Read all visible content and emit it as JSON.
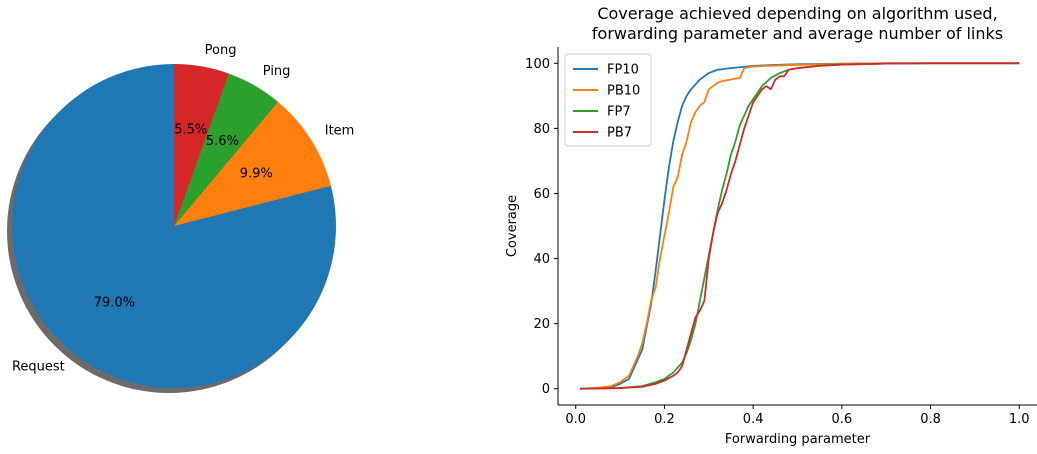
{
  "chart_data": [
    {
      "type": "pie",
      "title": "",
      "labels": [
        "Request",
        "Item",
        "Ping",
        "Pong"
      ],
      "values": [
        79.0,
        9.9,
        5.6,
        5.5
      ],
      "value_labels": [
        "79.0%",
        "9.9%",
        "5.6%",
        "5.5%"
      ],
      "colors": [
        "#1f77b4",
        "#ff7f0e",
        "#2ca02c",
        "#d62728"
      ],
      "start_angle_deg": 90,
      "direction": "counterclockwise",
      "shadow": true
    },
    {
      "type": "line",
      "title": "Coverage achieved depending on algorithm used,\nforwarding parameter and average number of links",
      "title_lines": [
        "Coverage achieved depending on algorithm used,",
        "forwarding parameter and average number of links"
      ],
      "xlabel": "Forwarding parameter",
      "ylabel": "Coverage",
      "xlim": [
        -0.04,
        1.04
      ],
      "ylim": [
        -5,
        105
      ],
      "xticks": [
        0.0,
        0.2,
        0.4,
        0.6,
        0.8,
        1.0
      ],
      "xtick_labels": [
        "0.0",
        "0.2",
        "0.4",
        "0.6",
        "0.8",
        "1.0"
      ],
      "yticks": [
        0,
        20,
        40,
        60,
        80,
        100
      ],
      "ytick_labels": [
        "0",
        "20",
        "40",
        "60",
        "80",
        "100"
      ],
      "grid": false,
      "legend_position": "upper-left",
      "series": [
        {
          "name": "FP10",
          "color": "#1f77b4",
          "x": [
            0.01,
            0.05,
            0.08,
            0.1,
            0.12,
            0.13,
            0.14,
            0.15,
            0.16,
            0.17,
            0.18,
            0.19,
            0.2,
            0.21,
            0.22,
            0.23,
            0.24,
            0.25,
            0.26,
            0.28,
            0.3,
            0.32,
            0.35,
            0.4,
            0.45,
            0.5,
            0.6,
            0.7,
            0.8,
            1.0
          ],
          "y": [
            0,
            0.2,
            0.5,
            1.5,
            3,
            6,
            9,
            12,
            19,
            26,
            36,
            47,
            58,
            68,
            76,
            82,
            87,
            90,
            92,
            95,
            97,
            98,
            98.5,
            99.2,
            99.5,
            99.7,
            99.9,
            100,
            100,
            100
          ]
        },
        {
          "name": "PB10",
          "color": "#ff7f0e",
          "x": [
            0.01,
            0.05,
            0.08,
            0.1,
            0.12,
            0.13,
            0.14,
            0.15,
            0.16,
            0.17,
            0.18,
            0.19,
            0.2,
            0.21,
            0.22,
            0.23,
            0.24,
            0.25,
            0.26,
            0.27,
            0.28,
            0.29,
            0.3,
            0.31,
            0.32,
            0.33,
            0.35,
            0.37,
            0.38,
            0.4,
            0.45,
            0.5,
            0.6,
            0.7,
            0.8,
            1.0
          ],
          "y": [
            0,
            0.3,
            0.8,
            2,
            4,
            7,
            10,
            14,
            20,
            27,
            31,
            40,
            47,
            54,
            62,
            65,
            72,
            76,
            82,
            85,
            87,
            88,
            92,
            93,
            94,
            94.5,
            95,
            95.5,
            98.5,
            99,
            99.3,
            99.5,
            99.8,
            100,
            100,
            100
          ]
        },
        {
          "name": "FP7",
          "color": "#2ca02c",
          "x": [
            0.01,
            0.1,
            0.15,
            0.18,
            0.2,
            0.22,
            0.24,
            0.25,
            0.26,
            0.27,
            0.28,
            0.29,
            0.3,
            0.31,
            0.32,
            0.33,
            0.34,
            0.35,
            0.36,
            0.37,
            0.38,
            0.39,
            0.4,
            0.42,
            0.44,
            0.46,
            0.48,
            0.5,
            0.55,
            0.6,
            0.7,
            0.8,
            1.0
          ],
          "y": [
            0,
            0.2,
            0.8,
            2,
            3,
            5,
            8,
            11,
            15,
            20,
            27,
            34,
            41,
            48,
            55,
            61,
            66,
            72,
            76,
            81,
            84,
            87,
            89,
            93,
            95.5,
            97,
            98,
            98.5,
            99.3,
            99.6,
            99.9,
            100,
            100
          ]
        },
        {
          "name": "PB7",
          "color": "#d62728",
          "x": [
            0.01,
            0.1,
            0.15,
            0.18,
            0.2,
            0.22,
            0.23,
            0.24,
            0.25,
            0.26,
            0.27,
            0.28,
            0.29,
            0.3,
            0.31,
            0.32,
            0.33,
            0.34,
            0.35,
            0.36,
            0.37,
            0.38,
            0.39,
            0.4,
            0.41,
            0.42,
            0.43,
            0.44,
            0.45,
            0.46,
            0.47,
            0.48,
            0.5,
            0.55,
            0.6,
            0.7,
            0.8,
            1.0
          ],
          "y": [
            0,
            0.2,
            0.6,
            1.5,
            2.5,
            4,
            5,
            7,
            12,
            17,
            22,
            24,
            27,
            40,
            48,
            54,
            57,
            61,
            66,
            70,
            75,
            80,
            84,
            88,
            90,
            92,
            93,
            92,
            95,
            96,
            96,
            98,
            98.5,
            99.2,
            99.6,
            99.9,
            100,
            100
          ]
        }
      ]
    }
  ]
}
